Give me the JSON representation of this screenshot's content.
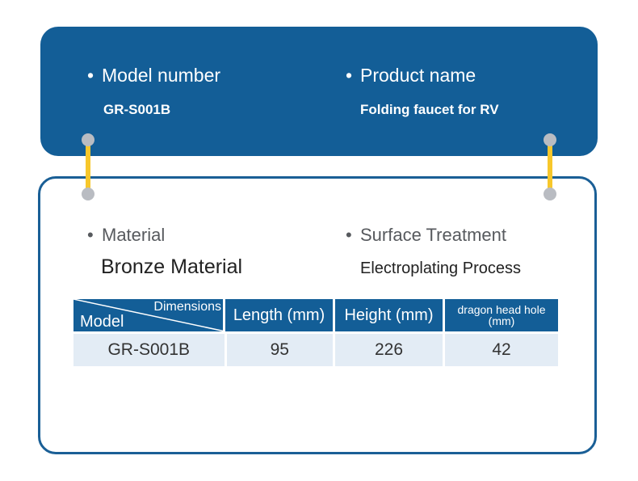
{
  "top": {
    "model_label": "Model number",
    "model_value": "GR-S001B",
    "product_label": "Product name",
    "product_value": "Folding faucet for RV"
  },
  "bottom": {
    "material_label": "Material",
    "material_value": "Bronze Material",
    "surface_label": "Surface Treatment",
    "surface_value": "Electroplating Process"
  },
  "table": {
    "corner_top": "Dimensions",
    "corner_bottom": "Model",
    "headers": [
      "Length (mm)",
      "Height (mm)",
      "dragon head hole (mm)"
    ],
    "rows": [
      [
        "GR-S001B",
        "95",
        "226",
        "42"
      ]
    ]
  },
  "colors": {
    "primary": "#135e97",
    "connector": "#f7c72b",
    "row_bg": "#e3ecf5"
  }
}
